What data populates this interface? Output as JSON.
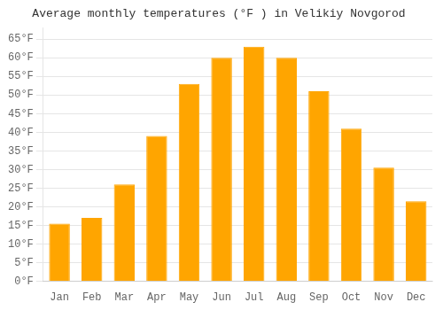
{
  "chart_data": {
    "type": "bar",
    "title": "Average monthly temperatures (°F ) in Velikiy Novgorod",
    "categories": [
      "Jan",
      "Feb",
      "Mar",
      "Apr",
      "May",
      "Jun",
      "Jul",
      "Aug",
      "Sep",
      "Oct",
      "Nov",
      "Dec"
    ],
    "values": [
      15.5,
      17,
      26,
      39,
      53,
      60,
      63,
      60,
      51,
      41,
      30.5,
      21.5
    ],
    "color": "#FFA500",
    "ylim": [
      0,
      68
    ],
    "yticks": [
      {
        "value": 0,
        "label": "0°F"
      },
      {
        "value": 5,
        "label": "5°F"
      },
      {
        "value": 10,
        "label": "10°F"
      },
      {
        "value": 15,
        "label": "15°F"
      },
      {
        "value": 20,
        "label": "20°F"
      },
      {
        "value": 25,
        "label": "25°F"
      },
      {
        "value": 30,
        "label": "30°F"
      },
      {
        "value": 35,
        "label": "35°F"
      },
      {
        "value": 40,
        "label": "40°F"
      },
      {
        "value": 45,
        "label": "45°F"
      },
      {
        "value": 50,
        "label": "50°F"
      },
      {
        "value": 55,
        "label": "55°F"
      },
      {
        "value": 60,
        "label": "60°F"
      },
      {
        "value": 65,
        "label": "65°F"
      }
    ],
    "grid": true
  }
}
